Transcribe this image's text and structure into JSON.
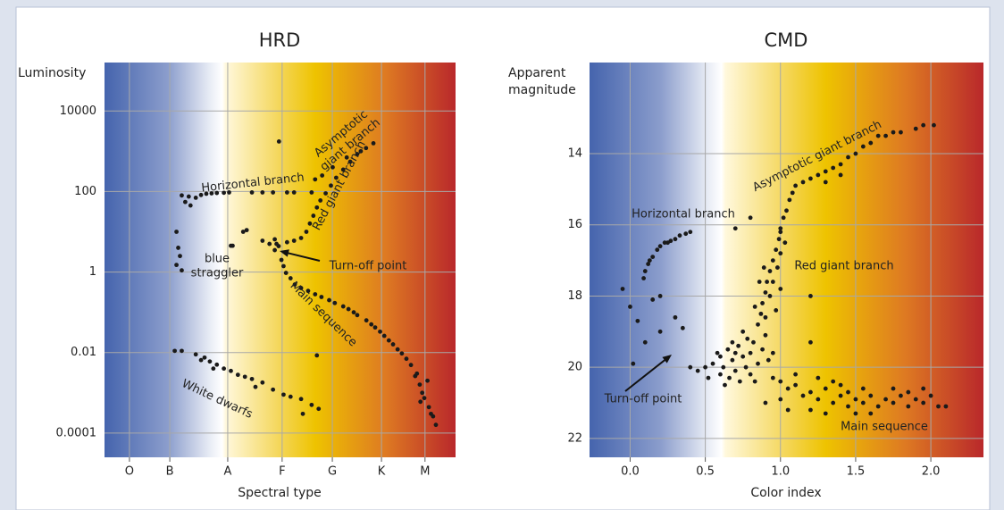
{
  "chart_data": [
    {
      "type": "scatter",
      "title": "HRD",
      "x_label": "Spectral type",
      "y_label": "Luminosity",
      "color": "#1a1a1a",
      "yscale": "log",
      "grid": true,
      "xlim": [
        0,
        10
      ],
      "ylim": [
        2.5e-05,
        160000
      ],
      "xticks": [
        {
          "value": 0.71,
          "label": "O"
        },
        {
          "value": 1.86,
          "label": "B"
        },
        {
          "value": 3.51,
          "label": "A"
        },
        {
          "value": 5.06,
          "label": "F"
        },
        {
          "value": 6.49,
          "label": "G"
        },
        {
          "value": 7.89,
          "label": "K"
        },
        {
          "value": 9.13,
          "label": "M"
        }
      ],
      "yticks": [
        10000,
        100,
        1,
        0.01,
        0.0001
      ],
      "annotations": [
        [
          "Horizontal branch"
        ],
        [
          "Asymptotic",
          "giant branch"
        ],
        [
          "Red giant branch"
        ],
        [
          "blue",
          "straggler"
        ],
        [
          "Turn-off point"
        ],
        [
          "Main sequence"
        ],
        [
          "White dwarfs"
        ]
      ],
      "x": [
        4.96,
        5.04,
        5.17,
        5.42,
        5.8,
        6.18,
        6.56,
        6.95,
        7.2,
        7.46,
        7.71,
        7.97,
        8.22,
        8.47,
        8.73,
        8.85,
        8.98,
        9.11,
        9.24,
        9.36,
        9.44,
        5.1,
        5.3,
        5.6,
        6.0,
        6.4,
        6.8,
        7.1,
        7.6,
        7.85,
        8.1,
        8.35,
        8.6,
        9.05,
        9.3,
        8.9,
        9.2,
        9.0,
        4.9,
        4.85,
        5.2,
        5.4,
        5.6,
        5.75,
        5.85,
        5.95,
        6.05,
        6.15,
        6.3,
        6.45,
        6.6,
        6.8,
        7.0,
        7.2,
        7.45,
        7.66,
        6.0,
        6.2,
        6.5,
        6.9,
        7.3,
        2.4,
        2.6,
        2.75,
        2.9,
        3.05,
        3.2,
        3.4,
        3.55,
        4.2,
        4.5,
        4.8,
        5.2,
        5.4,
        5.9,
        2.3,
        2.45,
        2.2,
        2.05,
        2.1,
        2.15,
        2.05,
        2.2,
        3.6,
        3.65,
        3.95,
        4.05,
        4.5,
        4.7,
        4.85,
        4.97,
        6.05,
        2.0,
        2.2,
        2.6,
        2.85,
        3.0,
        3.2,
        3.4,
        3.6,
        3.8,
        4.0,
        4.2,
        4.5,
        4.8,
        5.1,
        5.3,
        5.6,
        5.9,
        6.1,
        5.65,
        3.1,
        2.75,
        4.3
      ],
      "values": [
        4.4,
        2.0,
        0.95,
        0.49,
        0.34,
        0.24,
        0.17,
        0.12,
        0.085,
        0.063,
        0.042,
        0.026,
        0.016,
        0.0095,
        0.0049,
        0.0026,
        0.0016,
        0.00074,
        0.00044,
        0.00026,
        0.00016,
        1.4,
        0.7,
        0.4,
        0.28,
        0.2,
        0.14,
        0.1,
        0.05,
        0.033,
        0.02,
        0.012,
        0.007,
        0.001,
        0.0003,
        0.003,
        0.002,
        0.0006,
        5,
        3.5,
        5.5,
        6,
        7,
        10,
        16,
        25,
        40,
        60,
        90,
        140,
        220,
        350,
        550,
        850,
        1200,
        1580,
        200,
        250,
        400,
        700,
        1000,
        75,
        70,
        82,
        88,
        90,
        92,
        93,
        95,
        95,
        95,
        95,
        95,
        95,
        95,
        55,
        45,
        80,
        10,
        4,
        2.5,
        1.5,
        1.1,
        4.5,
        4.5,
        10,
        11,
        6,
        5,
        6.5,
        1750,
        0.0085,
        0.011,
        0.011,
        0.009,
        0.0075,
        0.006,
        0.005,
        0.004,
        0.0035,
        0.0028,
        0.0025,
        0.0022,
        0.0018,
        0.0012,
        0.0009,
        0.0008,
        0.0007,
        0.0005,
        0.0004,
        0.0003,
        0.004,
        0.0065,
        0.0014
      ]
    },
    {
      "type": "scatter",
      "title": "CMD",
      "x_label": "Color index",
      "y_label": [
        "Apparent",
        "magnitude"
      ],
      "color": "#1a1a1a",
      "grid": true,
      "xlim": [
        -0.27,
        2.35
      ],
      "ylim": [
        22.53,
        11.44
      ],
      "xticks": [
        {
          "value": 0,
          "label": "0.0"
        },
        0.5,
        {
          "value": 1,
          "label": "1.0"
        },
        1.5,
        {
          "value": 2,
          "label": "2.0"
        }
      ],
      "yticks": [
        14,
        16,
        18,
        20,
        22
      ],
      "annotations": [
        [
          "Horizontal branch"
        ],
        [
          "Asymptotic giant branch"
        ],
        [
          "Red giant branch"
        ],
        [
          "Turn-off point"
        ],
        [
          "Main sequence"
        ]
      ],
      "x": [
        0.1,
        0.12,
        0.15,
        0.18,
        0.2,
        0.23,
        0.27,
        0.3,
        0.33,
        0.37,
        0.4,
        0.13,
        0.25,
        0.09,
        0.55,
        0.6,
        0.62,
        0.65,
        0.68,
        0.7,
        0.72,
        0.75,
        0.77,
        0.8,
        0.82,
        0.85,
        0.7,
        0.78,
        0.88,
        0.9,
        0.66,
        0.73,
        0.8,
        0.6,
        0.58,
        0.83,
        0.95,
        0.92,
        0.68,
        0.75,
        0.5,
        0.52,
        0.63,
        0.95,
        1.0,
        1.05,
        1.1,
        1.15,
        1.2,
        1.25,
        1.3,
        1.35,
        1.4,
        1.45,
        1.5,
        1.55,
        1.6,
        1.65,
        1.7,
        1.75,
        1.8,
        1.85,
        1.9,
        1.95,
        2.0,
        2.05,
        2.1,
        1.0,
        1.1,
        1.2,
        1.3,
        1.4,
        1.5,
        1.6,
        1.75,
        1.85,
        1.95,
        0.9,
        1.05,
        1.35,
        1.55,
        1.25,
        1.45,
        0.85,
        0.87,
        0.88,
        0.9,
        0.91,
        0.93,
        0.95,
        0.97,
        0.99,
        1.0,
        1.02,
        1.04,
        1.06,
        1.08,
        1.1,
        0.9,
        0.93,
        0.95,
        0.98,
        1.0,
        0.83,
        0.86,
        0.89,
        1.03,
        0.97,
        1.0,
        1.15,
        1.2,
        1.25,
        1.3,
        1.35,
        1.4,
        1.45,
        1.5,
        1.55,
        1.6,
        1.7,
        1.8,
        1.9,
        1.95,
        2.02,
        1.65,
        1.75,
        1.3,
        1.4,
        -0.05,
        0.0,
        0.05,
        0.1,
        0.15,
        0.2,
        0.3,
        0.35,
        0.02,
        0.2,
        0.4,
        0.45,
        0.8,
        0.7,
        1.2,
        1.2,
        1.0
      ],
      "values": [
        17.3,
        17.1,
        16.9,
        16.7,
        16.6,
        16.5,
        16.45,
        16.4,
        16.3,
        16.25,
        16.2,
        17.0,
        16.5,
        17.5,
        19.9,
        19.7,
        20.0,
        19.5,
        19.8,
        20.1,
        19.4,
        19.7,
        20.0,
        19.6,
        19.3,
        19.9,
        19.6,
        19.2,
        19.5,
        19.1,
        20.3,
        20.4,
        20.2,
        20.2,
        19.6,
        20.4,
        19.6,
        19.8,
        19.3,
        19.0,
        20.0,
        20.3,
        20.5,
        20.3,
        20.4,
        20.6,
        20.5,
        20.8,
        20.7,
        20.9,
        20.6,
        21.0,
        20.8,
        21.1,
        20.9,
        21.0,
        20.8,
        21.1,
        20.9,
        21.0,
        20.8,
        21.1,
        20.9,
        21.0,
        20.8,
        21.1,
        21.1,
        20.9,
        20.2,
        21.2,
        21.3,
        20.5,
        21.3,
        21.3,
        20.6,
        20.7,
        20.6,
        21.0,
        21.2,
        20.4,
        20.6,
        20.3,
        20.7,
        18.8,
        18.5,
        18.2,
        17.9,
        17.6,
        17.3,
        17.0,
        16.7,
        16.4,
        16.1,
        15.8,
        15.6,
        15.3,
        15.1,
        14.9,
        18.6,
        18.0,
        17.6,
        17.2,
        16.8,
        18.3,
        17.6,
        17.2,
        16.5,
        18.4,
        17.8,
        14.8,
        14.7,
        14.6,
        14.5,
        14.4,
        14.3,
        14.1,
        14.0,
        13.8,
        13.7,
        13.5,
        13.4,
        13.3,
        13.2,
        13.2,
        13.5,
        13.4,
        14.8,
        14.6,
        17.8,
        18.3,
        18.7,
        19.3,
        18.1,
        18.0,
        18.6,
        18.9,
        19.9,
        19.0,
        20.0,
        20.1,
        15.8,
        16.1,
        18.0,
        19.3,
        16.2
      ]
    }
  ]
}
